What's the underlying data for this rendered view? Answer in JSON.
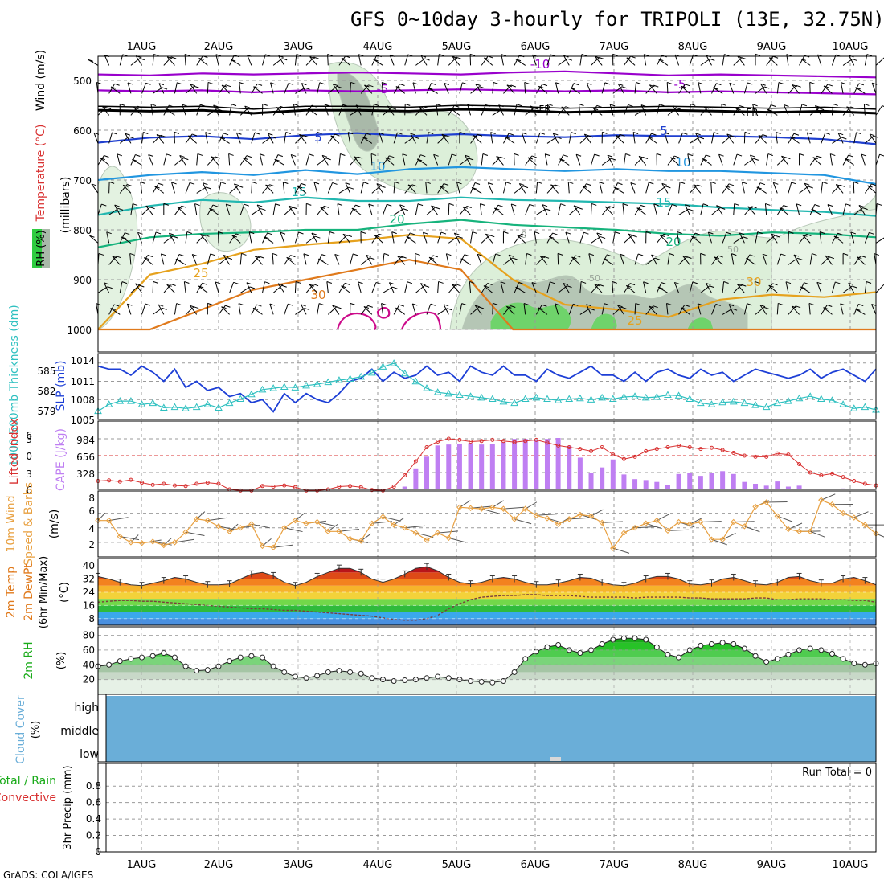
{
  "title": "GFS 0~10day 3-hourly for TRIPOLI (13E, 32.75N)",
  "credit": "GrADS: COLA/IGES",
  "colors": {
    "purple": "#9900cc",
    "black": "#000000",
    "blue": "#1f3fcf",
    "skyblue": "#2196e0",
    "teal": "#22b7b0",
    "green": "#16b37c",
    "orange": "#e6a21e",
    "darkorange": "#e07a1c",
    "magenta": "#cc0a8a",
    "slp": "#1d3fd6",
    "thick": "#2ec0c0",
    "li": "#d83030",
    "cape": "#bf7ff2",
    "wind": "#e8a040",
    "cloud": "#6aaed8"
  },
  "chart_data": [
    {
      "panel": "upper-air",
      "type": "contour",
      "xlabels": [
        "1AUG",
        "2AUG",
        "3AUG",
        "4AUG",
        "5AUG",
        "6AUG",
        "7AUG",
        "8AUG",
        "9AUG",
        "10AUG"
      ],
      "ylabel_left": [
        "RH (%)",
        "Temperature (°C)",
        "Wind (m/s)"
      ],
      "ylabel_right": "(millibars)",
      "yticks": [
        500,
        600,
        700,
        800,
        900,
        1000
      ],
      "contour_labels": [
        "-10",
        "-5",
        "-5",
        "FR",
        "FR",
        "5",
        "5",
        "10",
        "10",
        "15",
        "15",
        "20",
        "20",
        "25",
        "25",
        "30",
        "0",
        "50",
        "50",
        "30"
      ],
      "isotherms": [
        {
          "temp": "-10",
          "color": "purple",
          "p": [
            488,
            490,
            486,
            488,
            486,
            484,
            486,
            488,
            484,
            482,
            486,
            490,
            488,
            490,
            492,
            494
          ]
        },
        {
          "temp": "-5",
          "color": "purple",
          "p": [
            520,
            522,
            520,
            524,
            520,
            522,
            520,
            518,
            520,
            522,
            520,
            524,
            522,
            524,
            526,
            528
          ]
        },
        {
          "temp": "FR",
          "color": "black",
          "p": [
            560,
            562,
            560,
            566,
            560,
            560,
            562,
            558,
            560,
            564,
            562,
            560,
            562,
            564,
            562,
            566
          ]
        },
        {
          "temp": "5",
          "color": "blue",
          "p": [
            625,
            615,
            612,
            618,
            610,
            606,
            612,
            608,
            612,
            614,
            610,
            612,
            612,
            614,
            618,
            628
          ]
        },
        {
          "temp": "10",
          "color": "skyblue",
          "p": [
            700,
            690,
            684,
            690,
            680,
            688,
            678,
            674,
            678,
            682,
            678,
            682,
            682,
            686,
            690,
            708
          ]
        },
        {
          "temp": "15",
          "color": "teal",
          "p": [
            770,
            752,
            740,
            745,
            735,
            742,
            742,
            735,
            740,
            742,
            745,
            748,
            755,
            760,
            764,
            772
          ]
        },
        {
          "temp": "20",
          "color": "green",
          "p": [
            835,
            815,
            808,
            805,
            800,
            800,
            788,
            780,
            790,
            795,
            800,
            808,
            812,
            805,
            808,
            815
          ]
        },
        {
          "temp": "25",
          "color": "orange",
          "p": [
            1000,
            890,
            868,
            840,
            830,
            822,
            810,
            818,
            900,
            950,
            960,
            975,
            940,
            930,
            935,
            925
          ]
        },
        {
          "temp": "30",
          "color": "darkorange",
          "p": [
            1000,
            1000,
            960,
            920,
            900,
            880,
            860,
            880,
            1000,
            1000,
            1000,
            1000,
            1000,
            1000,
            1000,
            1000
          ]
        }
      ]
    },
    {
      "panel": "slp-thickness",
      "type": "line",
      "ylabel_left": "1000-500mb Thickness (dm)",
      "ylabel_right": "SLP (mb)",
      "ticks_right": [
        "1014",
        "1011",
        "1008",
        "1005"
      ],
      "ticks_left": [
        "585",
        "582",
        "579"
      ],
      "series": [
        {
          "name": "SLP",
          "color": "slp",
          "values": [
            1013.5,
            1013,
            1013,
            1012,
            1013.5,
            1012.5,
            1011,
            1013,
            1010,
            1011,
            1009.5,
            1010,
            1008.5,
            1009,
            1007.5,
            1008,
            1006,
            1009,
            1007.5,
            1009,
            1008,
            1007.5,
            1009,
            1011,
            1011.5,
            1013,
            1011,
            1012.5,
            1011.5,
            1012,
            1013.5,
            1012,
            1012.5,
            1011,
            1013.5,
            1012.5,
            1012,
            1013.5,
            1012,
            1012,
            1011,
            1013,
            1012,
            1011.5,
            1012.5,
            1013.5,
            1012,
            1012,
            1011,
            1012.5,
            1011,
            1012.5,
            1013,
            1012,
            1011.5,
            1013,
            1012,
            1012.5,
            1011,
            1012,
            1013,
            1012.5,
            1012,
            1011.5,
            1012,
            1013,
            1011.5,
            1012.5,
            1013,
            1012,
            1011,
            1013
          ]
        },
        {
          "name": "Thickness",
          "color": "thick",
          "values": [
            579.0,
            580.0,
            580.5,
            580.5,
            580.0,
            580.2,
            579.5,
            579.6,
            579.4,
            579.6,
            580.0,
            579.5,
            580.2,
            580.8,
            581.5,
            582.2,
            582.4,
            582.6,
            582.5,
            582.8,
            583.0,
            583.3,
            583.6,
            583.8,
            584.1,
            584.7,
            585.6,
            586.1,
            584.6,
            583.4,
            582.4,
            581.8,
            581.6,
            581.4,
            581.2,
            581.0,
            580.8,
            580.4,
            580.2,
            580.8,
            581.0,
            580.8,
            580.6,
            580.8,
            580.9,
            580.7,
            581.0,
            580.8,
            581.1,
            581.2,
            581.0,
            581.1,
            581.4,
            581.3,
            580.8,
            580.2,
            580.0,
            580.3,
            580.4,
            580.2,
            579.9,
            579.6,
            580.2,
            580.5,
            580.9,
            581.2,
            580.8,
            580.6,
            580.0,
            579.4,
            579.6,
            579.2
          ]
        }
      ]
    },
    {
      "panel": "cape-li",
      "type": "bar+line",
      "ylabel_left": [
        "Lifted Index",
        "CAPE (J/kg)"
      ],
      "ticks_li": [
        "-6",
        "-3",
        "0",
        "3",
        "6"
      ],
      "ticks_cape": [
        "984",
        "656",
        "328"
      ],
      "li_values": [
        4.5,
        4.4,
        4.6,
        4.3,
        4.8,
        5.2,
        5.0,
        5.3,
        5.4,
        5.0,
        4.8,
        5.0,
        6.0,
        6.2,
        6.2,
        5.4,
        5.5,
        5.3,
        5.6,
        6.2,
        6.2,
        6.0,
        5.5,
        5.4,
        5.6,
        6.1,
        6.2,
        5.5,
        3.5,
        1.0,
        -1.5,
        -2.5,
        -3.0,
        -2.8,
        -2.5,
        -2.6,
        -2.8,
        -2.6,
        -2.4,
        -2.6,
        -2.8,
        -2.3,
        -1.8,
        -1.5,
        -1.2,
        -0.8,
        -1.5,
        -0.2,
        0.6,
        0.2,
        -0.8,
        -1.2,
        -1.5,
        -1.8,
        -1.5,
        -1.2,
        -1.4,
        -1.0,
        -0.5,
        0.0,
        0.2,
        0.2,
        -0.4,
        -0.2,
        1.5,
        3.0,
        3.5,
        3.2,
        3.8,
        4.5,
        5.0,
        5.3
      ],
      "cape_values": [
        0,
        0,
        0,
        0,
        0,
        0,
        0,
        0,
        0,
        0,
        0,
        0,
        0,
        0,
        0,
        0,
        0,
        0,
        0,
        0,
        0,
        0,
        0,
        0,
        0,
        0,
        0,
        0,
        60,
        450,
        700,
        940,
        960,
        980,
        990,
        960,
        970,
        1010,
        1080,
        1080,
        1050,
        1080,
        1100,
        930,
        680,
        350,
        470,
        640,
        320,
        220,
        200,
        160,
        90,
        330,
        360,
        290,
        360,
        390,
        330,
        160,
        120,
        80,
        170,
        60,
        80,
        0,
        0,
        0,
        20,
        0,
        0,
        0
      ]
    },
    {
      "panel": "10m-wind",
      "type": "line",
      "ylabel_left": [
        "10m Wind",
        "Speed & Barbs",
        "(m/s)"
      ],
      "yticks": [
        "8",
        "6",
        "4",
        "2"
      ],
      "values": [
        5.0,
        5.0,
        2.8,
        2.0,
        1.9,
        2.1,
        1.6,
        2.0,
        3.4,
        5.2,
        5.0,
        4.2,
        3.5,
        4.0,
        4.5,
        1.5,
        1.3,
        4.0,
        5.0,
        4.6,
        4.8,
        3.5,
        3.5,
        2.5,
        2.2,
        4.6,
        5.5,
        4.4,
        4.0,
        3.3,
        2.3,
        3.3,
        2.6,
        6.8,
        6.7,
        6.6,
        6.8,
        6.6,
        5.2,
        6.6,
        5.7,
        5.3,
        4.5,
        5.2,
        5.8,
        5.6,
        4.7,
        1.2,
        3.3,
        4.0,
        4.6,
        5.0,
        3.6,
        4.8,
        4.5,
        4.8,
        2.4,
        2.4,
        4.8,
        4.2,
        6.9,
        7.5,
        5.6,
        3.8,
        3.5,
        3.5,
        7.8,
        7.2,
        6.0,
        5.4,
        4.4,
        3.2
      ]
    },
    {
      "panel": "2m-temp",
      "type": "area",
      "ylabel_left": [
        "2m Temp",
        "2m DewPt",
        "(6hr Min/Max)",
        "(°C)"
      ],
      "yticks": [
        "40",
        "32",
        "24",
        "16",
        "8"
      ],
      "temp_values": [
        33.5,
        32,
        30,
        28.5,
        28,
        29.5,
        31,
        33,
        32,
        30,
        28.5,
        28.5,
        29,
        32,
        35,
        36,
        34,
        30,
        28,
        30,
        33.5,
        36,
        38.5,
        38.5,
        36,
        32,
        30,
        32,
        35,
        38.5,
        39.5,
        37,
        33,
        30,
        29,
        30,
        32,
        33,
        32,
        30,
        28.5,
        28.5,
        29.5,
        31,
        33,
        32.5,
        30,
        28.5,
        28,
        29.5,
        32,
        33.5,
        33.5,
        32,
        29,
        28.5,
        29.5,
        32,
        33,
        31,
        29,
        28.5,
        30,
        33,
        33.5,
        31,
        29.5,
        29.5,
        32,
        33,
        31,
        28.5
      ],
      "dewpt_values": [
        18,
        18.5,
        19,
        19,
        18.5,
        18.5,
        18,
        17.5,
        17,
        16.5,
        16,
        15.5,
        15,
        14.5,
        14,
        14,
        13.5,
        13,
        13,
        12.5,
        12,
        11.5,
        11,
        10.5,
        10,
        9.5,
        8.5,
        7.5,
        7,
        7,
        8,
        10,
        14,
        17,
        19.5,
        21,
        21.5,
        22,
        22,
        22.5,
        22.5,
        22,
        22,
        22,
        21.5,
        21,
        21,
        21,
        21,
        20.5,
        21,
        21,
        21,
        21,
        20.5,
        20.5,
        20,
        20,
        20,
        20,
        20.5,
        20.5,
        19.5,
        19.5,
        20,
        20,
        20,
        19.5,
        19.5,
        19,
        19,
        18
      ]
    },
    {
      "panel": "2m-rh",
      "type": "area",
      "ylabel_left": [
        "2m RH",
        "(%)"
      ],
      "yticks": [
        "80",
        "60",
        "40",
        "20"
      ],
      "values": [
        38,
        40,
        45,
        48,
        50,
        52,
        56,
        50,
        38,
        32,
        33,
        38,
        45,
        50,
        52,
        50,
        38,
        30,
        24,
        22,
        25,
        30,
        32,
        30,
        28,
        22,
        20,
        18,
        19,
        20,
        22,
        24,
        22,
        20,
        18,
        17,
        16,
        18,
        30,
        48,
        58,
        64,
        67,
        60,
        56,
        60,
        68,
        74,
        76,
        76,
        74,
        64,
        54,
        50,
        60,
        66,
        68,
        70,
        68,
        62,
        52,
        44,
        48,
        54,
        60,
        62,
        60,
        55,
        48,
        42,
        40,
        42
      ]
    },
    {
      "panel": "cloud-cover",
      "type": "bar",
      "ylabel_left": [
        "Cloud Cover",
        "(%)"
      ],
      "levels": [
        "high",
        "middle",
        "low"
      ]
    },
    {
      "panel": "precip",
      "type": "bar",
      "ylabel_left": [
        "Total / Rain",
        "Convective",
        "3hr Precip (mm)"
      ],
      "yticks": [
        "0.8",
        "0.6",
        "0.4",
        "0.2",
        "0"
      ],
      "run_total": "Run Total = 0"
    }
  ]
}
